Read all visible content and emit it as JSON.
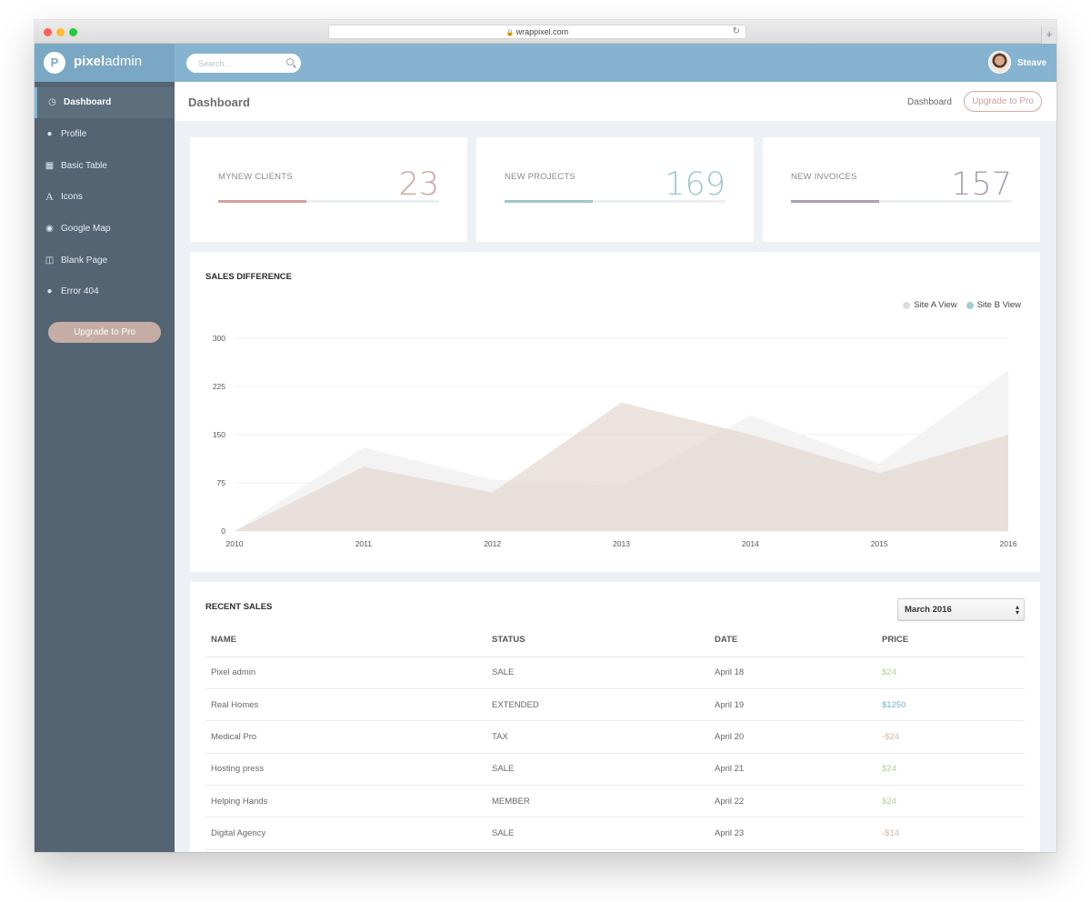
{
  "browser": {
    "url": "wrappixel.com"
  },
  "brand": {
    "mark": "P",
    "name_bold": "pixel",
    "name_light": "admin"
  },
  "search": {
    "placeholder": "Search..."
  },
  "user": {
    "name": "Steave"
  },
  "sidebar": {
    "items": [
      {
        "label": "Dashboard",
        "icon": "clock-icon",
        "active": true
      },
      {
        "label": "Profile",
        "icon": "user-icon",
        "active": false
      },
      {
        "label": "Basic Table",
        "icon": "table-icon",
        "active": false
      },
      {
        "label": "Icons",
        "icon": "font-icon",
        "active": false
      },
      {
        "label": "Google Map",
        "icon": "globe-icon",
        "active": false
      },
      {
        "label": "Blank Page",
        "icon": "columns-icon",
        "active": false
      },
      {
        "label": "Error 404",
        "icon": "info-icon",
        "active": false
      }
    ],
    "upgrade_label": "Upgrade to Pro"
  },
  "header": {
    "title": "Dashboard",
    "breadcrumb": "Dashboard",
    "upgrade_label": "Upgrade to Pro"
  },
  "stats": [
    {
      "label": "MYNEW CLIENTS",
      "value": "23",
      "progress": 0.4,
      "color": "#d2a09e"
    },
    {
      "label": "NEW PROJECTS",
      "value": "169",
      "progress": 0.4,
      "color": "#9cc7cf"
    },
    {
      "label": "NEW INVOICES",
      "value": "157",
      "progress": 0.4,
      "color": "#aa9cb7"
    }
  ],
  "chart_data": {
    "type": "area",
    "title": "SALES DIFFERENCE",
    "x": [
      "2010",
      "2011",
      "2012",
      "2013",
      "2014",
      "2015",
      "2016"
    ],
    "series": [
      {
        "name": "Site A View",
        "values": [
          0,
          130,
          80,
          70,
          180,
          105,
          250
        ],
        "color": "#dddddd"
      },
      {
        "name": "Site B View",
        "values": [
          0,
          100,
          60,
          200,
          150,
          90,
          150
        ],
        "color": "#a3cfd4"
      }
    ],
    "yticks": [
      0,
      75,
      150,
      225,
      300
    ],
    "ylim": [
      0,
      300
    ],
    "grid": true,
    "legend": "top-right"
  },
  "recent_sales": {
    "title": "RECENT SALES",
    "selected_month": "March 2016",
    "columns": [
      "NAME",
      "STATUS",
      "DATE",
      "PRICE"
    ],
    "rows": [
      {
        "name": "Pixel admin",
        "status": "SALE",
        "date": "April 18",
        "price": "$24",
        "price_color": "#b4cf9a"
      },
      {
        "name": "Real Homes",
        "status": "EXTENDED",
        "date": "April 19",
        "price": "$1250",
        "price_color": "#6fb3d8"
      },
      {
        "name": "Medical Pro",
        "status": "TAX",
        "date": "April 20",
        "price": "-$24",
        "price_color": "#e0b39a"
      },
      {
        "name": "Hosting press",
        "status": "SALE",
        "date": "April 21",
        "price": "$24",
        "price_color": "#b4cf9a"
      },
      {
        "name": "Helping Hands",
        "status": "MEMBER",
        "date": "April 22",
        "price": "$24",
        "price_color": "#b4cf9a"
      },
      {
        "name": "Digital Agency",
        "status": "SALE",
        "date": "April 23",
        "price": "-$14",
        "price_color": "#e0b39a"
      }
    ]
  }
}
